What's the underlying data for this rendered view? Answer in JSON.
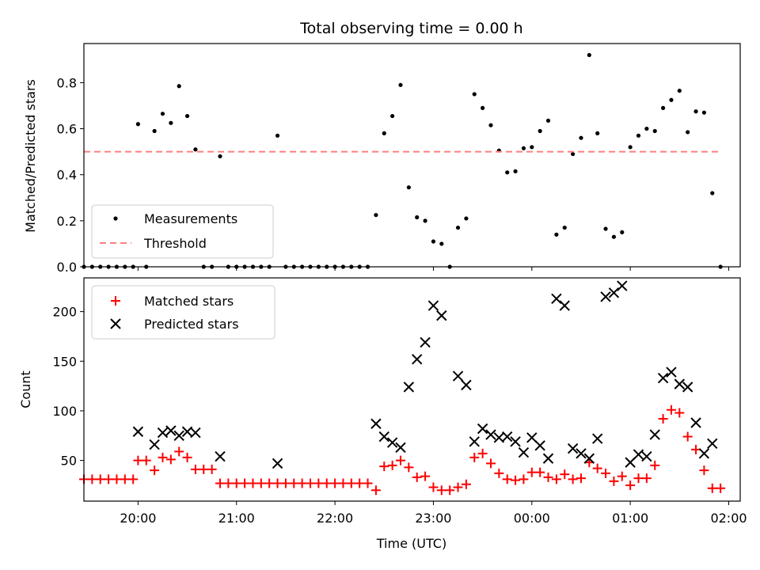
{
  "figure_title": "Total observing time = 0.00 h",
  "chart_data": [
    {
      "type": "scatter",
      "ylabel": "Matched/Predicted stars",
      "xlabel": "",
      "xlim": [
        "19:27",
        "02:07"
      ],
      "ylim": [
        0,
        0.97
      ],
      "yticks": [
        "0.0",
        "0.2",
        "0.4",
        "0.6",
        "0.8"
      ],
      "ytick_values": [
        0,
        0.2,
        0.4,
        0.6,
        0.8
      ],
      "legend_position": "lower-left",
      "threshold": 0.5,
      "threshold_range": [
        "19:27",
        "01:56"
      ],
      "legend": {
        "measurements": "Measurements",
        "threshold": "Threshold"
      },
      "colors": {
        "measurements": "#000000",
        "threshold": "#ff7f7f"
      },
      "series": [
        {
          "name": "Measurements",
          "points": [
            [
              "19:27",
              0
            ],
            [
              "19:32",
              0
            ],
            [
              "19:37",
              0
            ],
            [
              "19:42",
              0
            ],
            [
              "19:47",
              0
            ],
            [
              "19:52",
              0
            ],
            [
              "19:57",
              0
            ],
            [
              "20:00",
              0.62
            ],
            [
              "20:05",
              0
            ],
            [
              "20:10",
              0.59
            ],
            [
              "20:15",
              0.665
            ],
            [
              "20:20",
              0.625
            ],
            [
              "20:25",
              0.785
            ],
            [
              "20:30",
              0.655
            ],
            [
              "20:35",
              0.51
            ],
            [
              "20:40",
              0
            ],
            [
              "20:45",
              0
            ],
            [
              "20:50",
              0.48
            ],
            [
              "20:55",
              0
            ],
            [
              "21:00",
              0
            ],
            [
              "21:05",
              0
            ],
            [
              "21:10",
              0
            ],
            [
              "21:15",
              0
            ],
            [
              "21:20",
              0
            ],
            [
              "21:25",
              0.57
            ],
            [
              "21:30",
              0
            ],
            [
              "21:35",
              0
            ],
            [
              "21:40",
              0
            ],
            [
              "21:45",
              0
            ],
            [
              "21:50",
              0
            ],
            [
              "21:55",
              0
            ],
            [
              "22:00",
              0
            ],
            [
              "22:05",
              0
            ],
            [
              "22:10",
              0
            ],
            [
              "22:15",
              0
            ],
            [
              "22:20",
              0
            ],
            [
              "22:25",
              0.225
            ],
            [
              "22:30",
              0.58
            ],
            [
              "22:35",
              0.655
            ],
            [
              "22:40",
              0.79
            ],
            [
              "22:45",
              0.345
            ],
            [
              "22:50",
              0.215
            ],
            [
              "22:55",
              0.2
            ],
            [
              "23:00",
              0.11
            ],
            [
              "23:05",
              0.1
            ],
            [
              "23:10",
              0
            ],
            [
              "23:15",
              0.17
            ],
            [
              "23:20",
              0.21
            ],
            [
              "23:25",
              0.75
            ],
            [
              "23:30",
              0.69
            ],
            [
              "23:35",
              0.615
            ],
            [
              "23:40",
              0.505
            ],
            [
              "23:45",
              0.41
            ],
            [
              "23:50",
              0.415
            ],
            [
              "23:55",
              0.515
            ],
            [
              "00:00",
              0.52
            ],
            [
              "00:05",
              0.59
            ],
            [
              "00:10",
              0.635
            ],
            [
              "00:15",
              0.14
            ],
            [
              "00:20",
              0.17
            ],
            [
              "00:25",
              0.49
            ],
            [
              "00:30",
              0.56
            ],
            [
              "00:35",
              0.92
            ],
            [
              "00:40",
              0.58
            ],
            [
              "00:45",
              0.165
            ],
            [
              "00:50",
              0.13
            ],
            [
              "00:55",
              0.15
            ],
            [
              "01:00",
              0.52
            ],
            [
              "01:05",
              0.57
            ],
            [
              "01:10",
              0.6
            ],
            [
              "01:15",
              0.59
            ],
            [
              "01:20",
              0.69
            ],
            [
              "01:25",
              0.725
            ],
            [
              "01:30",
              0.765
            ],
            [
              "01:35",
              0.585
            ],
            [
              "01:40",
              0.675
            ],
            [
              "01:45",
              0.67
            ],
            [
              "01:50",
              0.32
            ],
            [
              "01:55",
              0
            ]
          ]
        }
      ]
    },
    {
      "type": "scatter",
      "title": "",
      "xlabel": "Time (UTC)",
      "ylabel": "Count",
      "xlim": [
        "19:27",
        "02:07"
      ],
      "ylim": [
        9,
        234
      ],
      "xticks": [
        "20:00",
        "21:00",
        "22:00",
        "23:00",
        "00:00",
        "01:00",
        "02:00"
      ],
      "yticks": [
        "50",
        "100",
        "150",
        "200"
      ],
      "ytick_values": [
        50,
        100,
        150,
        200
      ],
      "legend_position": "top-left",
      "colors": {
        "matched": "#ff0000",
        "predicted": "#000000"
      },
      "series": [
        {
          "name": "Matched stars",
          "points": [
            [
              "19:27",
              31
            ],
            [
              "19:32",
              31
            ],
            [
              "19:37",
              31
            ],
            [
              "19:42",
              31
            ],
            [
              "19:47",
              31
            ],
            [
              "19:52",
              31
            ],
            [
              "19:57",
              31
            ],
            [
              "20:00",
              50
            ],
            [
              "20:05",
              50
            ],
            [
              "20:10",
              40
            ],
            [
              "20:15",
              53
            ],
            [
              "20:20",
              51
            ],
            [
              "20:25",
              59
            ],
            [
              "20:30",
              53
            ],
            [
              "20:35",
              41
            ],
            [
              "20:40",
              41
            ],
            [
              "20:45",
              41
            ],
            [
              "20:50",
              27
            ],
            [
              "20:55",
              27
            ],
            [
              "21:00",
              27
            ],
            [
              "21:05",
              27
            ],
            [
              "21:10",
              27
            ],
            [
              "21:15",
              27
            ],
            [
              "21:20",
              27
            ],
            [
              "21:25",
              27
            ],
            [
              "21:30",
              27
            ],
            [
              "21:35",
              27
            ],
            [
              "21:40",
              27
            ],
            [
              "21:45",
              27
            ],
            [
              "21:50",
              27
            ],
            [
              "21:55",
              27
            ],
            [
              "22:00",
              27
            ],
            [
              "22:05",
              27
            ],
            [
              "22:10",
              27
            ],
            [
              "22:15",
              27
            ],
            [
              "22:20",
              27
            ],
            [
              "22:25",
              20
            ],
            [
              "22:30",
              44
            ],
            [
              "22:35",
              45
            ],
            [
              "22:40",
              50
            ],
            [
              "22:45",
              43
            ],
            [
              "22:50",
              33
            ],
            [
              "22:55",
              34
            ],
            [
              "23:00",
              23
            ],
            [
              "23:05",
              20
            ],
            [
              "23:10",
              20
            ],
            [
              "23:15",
              23
            ],
            [
              "23:20",
              26
            ],
            [
              "23:25",
              53
            ],
            [
              "23:30",
              57
            ],
            [
              "23:35",
              47
            ],
            [
              "23:40",
              37
            ],
            [
              "23:45",
              31
            ],
            [
              "23:50",
              30
            ],
            [
              "23:55",
              31
            ],
            [
              "00:00",
              38
            ],
            [
              "00:05",
              38
            ],
            [
              "00:10",
              33
            ],
            [
              "00:15",
              31
            ],
            [
              "00:20",
              36
            ],
            [
              "00:25",
              31
            ],
            [
              "00:30",
              32
            ],
            [
              "00:35",
              48
            ],
            [
              "00:40",
              42
            ],
            [
              "00:45",
              37
            ],
            [
              "00:50",
              29
            ],
            [
              "00:55",
              34
            ],
            [
              "01:00",
              25
            ],
            [
              "01:05",
              32
            ],
            [
              "01:10",
              32
            ],
            [
              "01:15",
              45
            ],
            [
              "01:20",
              92
            ],
            [
              "01:25",
              101
            ],
            [
              "01:30",
              98
            ],
            [
              "01:35",
              74
            ],
            [
              "01:40",
              61
            ],
            [
              "01:45",
              40
            ],
            [
              "01:50",
              22
            ],
            [
              "01:55",
              22
            ]
          ]
        },
        {
          "name": "Predicted stars",
          "points": [
            [
              "20:00",
              79
            ],
            [
              "20:10",
              66
            ],
            [
              "20:15",
              78
            ],
            [
              "20:20",
              80
            ],
            [
              "20:25",
              75
            ],
            [
              "20:30",
              79
            ],
            [
              "20:35",
              78
            ],
            [
              "20:50",
              54
            ],
            [
              "21:25",
              47
            ],
            [
              "22:25",
              87
            ],
            [
              "22:30",
              74
            ],
            [
              "22:35",
              68
            ],
            [
              "22:40",
              63
            ],
            [
              "22:45",
              124
            ],
            [
              "22:50",
              152
            ],
            [
              "22:55",
              169
            ],
            [
              "23:00",
              206
            ],
            [
              "23:05",
              196
            ],
            [
              "23:15",
              135
            ],
            [
              "23:20",
              126
            ],
            [
              "23:25",
              69
            ],
            [
              "23:30",
              82
            ],
            [
              "23:35",
              76
            ],
            [
              "23:40",
              73
            ],
            [
              "23:45",
              74
            ],
            [
              "23:50",
              69
            ],
            [
              "23:55",
              58
            ],
            [
              "00:00",
              73
            ],
            [
              "00:05",
              65
            ],
            [
              "00:10",
              52
            ],
            [
              "00:15",
              213
            ],
            [
              "00:20",
              206
            ],
            [
              "00:25",
              62
            ],
            [
              "00:30",
              57
            ],
            [
              "00:35",
              52
            ],
            [
              "00:40",
              72
            ],
            [
              "00:45",
              215
            ],
            [
              "00:50",
              219
            ],
            [
              "00:55",
              226
            ],
            [
              "01:00",
              48
            ],
            [
              "01:05",
              56
            ],
            [
              "01:10",
              54
            ],
            [
              "01:15",
              76
            ],
            [
              "01:20",
              133
            ],
            [
              "01:25",
              139
            ],
            [
              "01:30",
              127
            ],
            [
              "01:35",
              124
            ],
            [
              "01:40",
              88
            ],
            [
              "01:45",
              57
            ],
            [
              "01:50",
              67
            ]
          ]
        }
      ]
    }
  ]
}
